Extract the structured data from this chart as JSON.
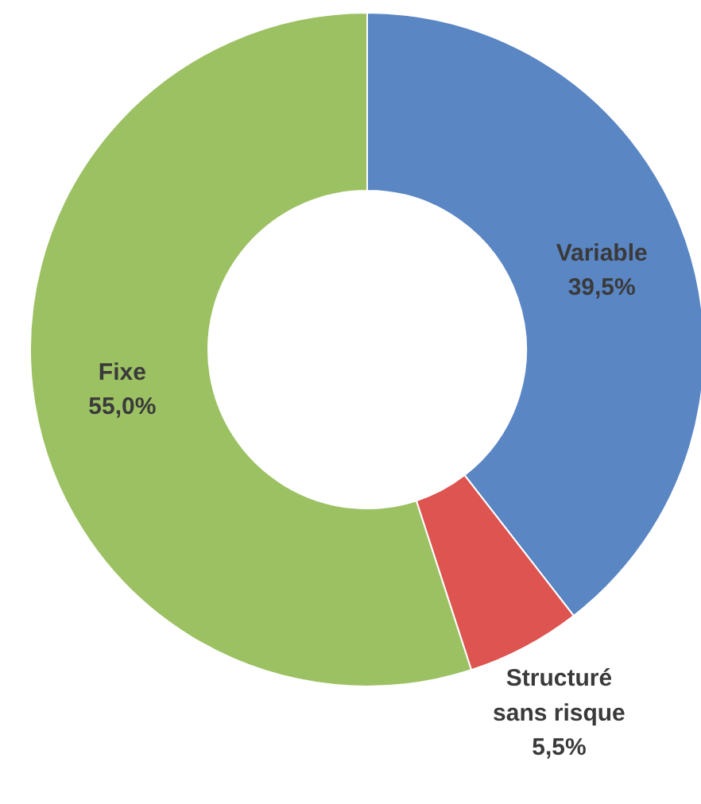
{
  "chart_data": {
    "type": "donut",
    "categories": [
      "Variable",
      "Structuré sans risque",
      "Fixe"
    ],
    "values": [
      39.5,
      5.5,
      55.0
    ],
    "colors": [
      "#5a86c4",
      "#dd5450",
      "#9cc163"
    ],
    "value_labels": [
      "39,5%",
      "5,5%",
      "55,0%"
    ]
  }
}
